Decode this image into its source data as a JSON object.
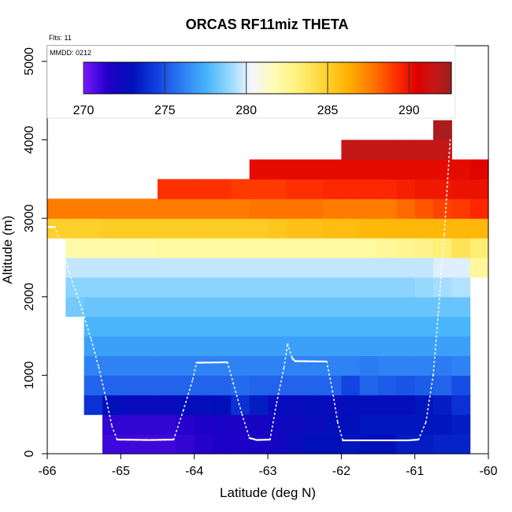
{
  "chart_data": {
    "type": "heatmap",
    "title": "ORCAS RF11miz THETA",
    "xlabel": "Latitude (deg N)",
    "ylabel": "Altitude (m)",
    "xlim": [
      -66,
      -60
    ],
    "ylim": [
      0,
      5200
    ],
    "x_ticks": [
      -66,
      -65,
      -64,
      -63,
      -62,
      -61,
      -60
    ],
    "y_ticks": [
      0,
      1000,
      2000,
      3000,
      4000,
      5000
    ],
    "annotations": {
      "flights": "Flts: 11",
      "mmdd": "MMDD: 0212"
    },
    "colorbar": {
      "range": [
        270,
        292.6
      ],
      "ticks": [
        270,
        275,
        280,
        285,
        290
      ],
      "stops": [
        [
          270.0,
          "#7a18ff"
        ],
        [
          271.5,
          "#2000c8"
        ],
        [
          273.0,
          "#0010b8"
        ],
        [
          274.5,
          "#1040e0"
        ],
        [
          276.0,
          "#2c7bf2"
        ],
        [
          277.5,
          "#44b2fb"
        ],
        [
          279.0,
          "#96d9fd"
        ],
        [
          280.3,
          "#f4f6ff"
        ],
        [
          281.8,
          "#fffcb0"
        ],
        [
          283.2,
          "#fff07a"
        ],
        [
          284.8,
          "#ffd533"
        ],
        [
          286.3,
          "#ffb000"
        ],
        [
          287.8,
          "#ff7400"
        ],
        [
          289.3,
          "#ff2b00"
        ],
        [
          290.5,
          "#dc0000"
        ],
        [
          291.5,
          "#c81616"
        ],
        [
          292.6,
          "#9c2020"
        ]
      ]
    },
    "cell_height_m": 250,
    "cell_width_deg": 0.25,
    "grid": [
      {
        "alt": 0,
        "lon_start": -65.25,
        "values": [
          271.0,
          271.0,
          271.0,
          271.0,
          271.2,
          271.4,
          271.6,
          271.6,
          271.8,
          272.0,
          272.6,
          273.0,
          273.0,
          273.2,
          273.0,
          273.0,
          273.4,
          273.4,
          273.6,
          273.6
        ]
      },
      {
        "alt": 250,
        "lon_start": -65.25,
        "values": [
          271.2,
          271.2,
          271.2,
          271.2,
          271.4,
          271.6,
          271.8,
          271.8,
          272.0,
          272.2,
          272.4,
          272.6,
          272.8,
          273.0,
          273.2,
          273.2,
          273.2,
          273.2,
          273.2,
          273.4
        ]
      },
      {
        "alt": 500,
        "lon_start": -65.5,
        "values": [
          274.0,
          273.0,
          272.6,
          272.6,
          272.6,
          272.8,
          272.8,
          273.0,
          274.0,
          273.4,
          272.6,
          272.6,
          272.8,
          272.6,
          272.8,
          272.8,
          272.8,
          272.8,
          273.2,
          273.4,
          274.0
        ]
      },
      {
        "alt": 750,
        "lon_start": -65.5,
        "values": [
          275.4,
          275.4,
          275.4,
          275.4,
          275.4,
          275.4,
          275.4,
          275.4,
          275.6,
          275.4,
          275.4,
          275.4,
          275.4,
          275.4,
          274.6,
          275.4,
          275.2,
          275.0,
          275.2,
          275.4,
          274.8
        ]
      },
      {
        "alt": 1000,
        "lon_start": -65.5,
        "values": [
          276.2,
          276.2,
          276.2,
          276.2,
          276.2,
          276.2,
          276.2,
          276.2,
          276.2,
          276.2,
          276.2,
          276.2,
          276.2,
          276.2,
          276.2,
          276.0,
          276.2,
          276.2,
          276.2,
          276.0,
          276.2
        ]
      },
      {
        "alt": 1250,
        "lon_start": -65.5,
        "values": [
          277.0,
          277.0,
          277.0,
          277.0,
          277.0,
          277.0,
          277.0,
          277.0,
          277.0,
          277.0,
          277.0,
          277.0,
          277.0,
          277.0,
          277.0,
          277.0,
          277.0,
          277.0,
          277.0,
          277.0,
          277.0
        ]
      },
      {
        "alt": 1500,
        "lon_start": -65.5,
        "values": [
          277.6,
          277.6,
          277.6,
          277.6,
          277.6,
          277.6,
          277.6,
          277.6,
          277.6,
          277.6,
          277.6,
          277.6,
          277.6,
          277.6,
          277.6,
          277.6,
          277.6,
          277.6,
          277.6,
          277.6,
          277.6
        ]
      },
      {
        "alt": 1750,
        "lon_start": -65.75,
        "values": [
          278.4,
          278.2,
          278.2,
          278.2,
          278.2,
          278.2,
          278.2,
          278.2,
          278.2,
          278.2,
          278.2,
          278.2,
          278.2,
          278.2,
          278.2,
          278.2,
          278.2,
          278.2,
          278.2,
          278.2,
          278.2,
          278.2
        ]
      },
      {
        "alt": 2000,
        "lon_start": -65.75,
        "values": [
          278.8,
          278.8,
          278.8,
          278.8,
          278.8,
          278.8,
          278.8,
          278.8,
          278.8,
          278.8,
          278.8,
          278.8,
          278.8,
          278.8,
          278.8,
          278.8,
          278.8,
          278.8,
          278.8,
          279.0,
          279.2,
          279.4
        ]
      },
      {
        "alt": 2250,
        "lon_start": -65.75,
        "values": [
          279.6,
          279.6,
          279.6,
          279.6,
          279.6,
          279.6,
          279.6,
          279.6,
          279.6,
          279.6,
          279.6,
          279.6,
          279.6,
          279.6,
          279.6,
          279.6,
          279.6,
          279.6,
          279.6,
          279.6,
          280.0,
          280.0,
          282.4
        ]
      },
      {
        "alt": 2500,
        "lon_start": -65.75,
        "values": [
          282.0,
          282.0,
          282.0,
          282.0,
          282.0,
          282.2,
          282.2,
          282.2,
          282.2,
          282.2,
          282.2,
          282.2,
          282.2,
          282.2,
          282.2,
          282.2,
          282.2,
          282.4,
          282.6,
          282.8,
          283.2,
          284.0,
          283.4
        ]
      },
      {
        "alt": 2750,
        "lon_start": -66.0,
        "values": [
          285.0,
          285.0,
          285.0,
          285.2,
          285.2,
          285.2,
          285.2,
          285.2,
          285.2,
          285.2,
          285.2,
          285.2,
          285.4,
          285.6,
          285.6,
          285.8,
          285.8,
          286.0,
          286.0,
          286.0,
          286.0,
          286.0,
          286.0,
          286.0
        ]
      },
      {
        "alt": 3000,
        "lon_start": -66.0,
        "values": [
          287.6,
          287.6,
          287.6,
          287.6,
          287.6,
          287.6,
          287.6,
          287.6,
          287.6,
          287.6,
          287.6,
          287.8,
          287.8,
          287.8,
          287.8,
          287.6,
          287.6,
          287.6,
          287.6,
          288.0,
          288.4,
          288.8,
          289.0,
          289.4
        ]
      },
      {
        "alt": 3250,
        "lon_start": -64.5,
        "values": [
          289.2,
          289.2,
          289.2,
          289.2,
          289.0,
          289.0,
          289.0,
          289.2,
          289.2,
          289.4,
          289.4,
          289.4,
          289.4,
          289.6,
          289.8,
          289.8,
          290.0,
          290.0
        ]
      },
      {
        "alt": 3500,
        "lon_start": -63.25,
        "values": [
          290.2,
          290.2,
          290.2,
          290.2,
          290.2,
          290.2,
          290.2,
          290.2,
          290.2,
          290.2,
          290.2,
          290.2,
          290.4
        ]
      },
      {
        "alt": 3750,
        "lon_start": -62.0,
        "values": [
          291.6,
          291.6,
          291.6,
          291.6,
          291.6,
          291.6
        ]
      },
      {
        "alt": 4000,
        "lon_start": -60.75,
        "values": [
          292.2
        ]
      }
    ],
    "flight_track": [
      [
        -66.0,
        2890
      ],
      [
        -65.9,
        2890
      ],
      [
        -65.82,
        2700
      ],
      [
        -65.7,
        2300
      ],
      [
        -65.55,
        1900
      ],
      [
        -65.4,
        1450
      ],
      [
        -65.3,
        1100
      ],
      [
        -65.2,
        700
      ],
      [
        -65.12,
        350
      ],
      [
        -65.05,
        180
      ],
      [
        -64.6,
        175
      ],
      [
        -64.28,
        180
      ],
      [
        -64.15,
        550
      ],
      [
        -64.02,
        950
      ],
      [
        -63.97,
        1160
      ],
      [
        -63.55,
        1165
      ],
      [
        -63.47,
        900
      ],
      [
        -63.35,
        500
      ],
      [
        -63.25,
        200
      ],
      [
        -63.15,
        175
      ],
      [
        -62.97,
        180
      ],
      [
        -62.88,
        650
      ],
      [
        -62.78,
        1100
      ],
      [
        -62.73,
        1400
      ],
      [
        -62.67,
        1220
      ],
      [
        -62.63,
        1180
      ],
      [
        -62.2,
        1175
      ],
      [
        -62.12,
        800
      ],
      [
        -62.05,
        400
      ],
      [
        -61.98,
        170
      ],
      [
        -61.1,
        170
      ],
      [
        -60.95,
        180
      ],
      [
        -60.85,
        400
      ],
      [
        -60.75,
        1000
      ],
      [
        -60.68,
        1800
      ],
      [
        -60.6,
        2800
      ],
      [
        -60.52,
        4000
      ]
    ]
  }
}
